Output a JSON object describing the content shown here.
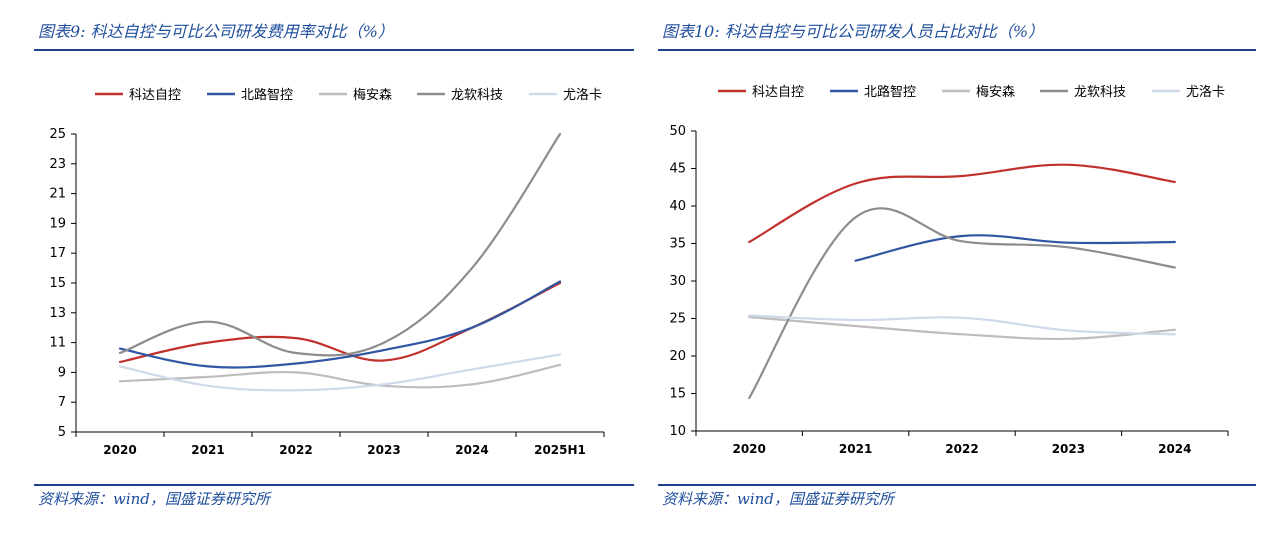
{
  "left": {
    "title": "图表9:  科达自控与可比公司研发费用率对比（%）",
    "source": "资料来源：wind，国盛证券研究所"
  },
  "right": {
    "title": "图表10:  科达自控与可比公司研发人员占比对比（%）",
    "source": "资料来源：wind，国盛证券研究所"
  },
  "chart_data": [
    {
      "type": "line",
      "title": "",
      "xlabel": "",
      "ylabel": "",
      "categories": [
        "2020",
        "2021",
        "2022",
        "2023",
        "2024",
        "2025H1"
      ],
      "ylim": [
        5,
        25
      ],
      "yticks": [
        5,
        7,
        9,
        11,
        13,
        15,
        17,
        19,
        21,
        23,
        25
      ],
      "legend_position": "top",
      "grid": false,
      "series": [
        {
          "name": "科达自控",
          "color": "#c0312b",
          "values": [
            9.7,
            11.0,
            11.3,
            9.8,
            12.0,
            15.0
          ]
        },
        {
          "name": "北路智控",
          "color": "#2f56a3",
          "values": [
            10.6,
            9.4,
            9.6,
            10.5,
            12.0,
            15.1
          ]
        },
        {
          "name": "梅安森",
          "color": "#bdbdbd",
          "values": [
            8.4,
            8.7,
            9.0,
            8.1,
            8.2,
            9.5
          ]
        },
        {
          "name": "龙软科技",
          "color": "#8c8c8c",
          "values": [
            10.3,
            12.4,
            10.3,
            11.0,
            16.0,
            25.0
          ]
        },
        {
          "name": "尤洛卡",
          "color": "#cfd9ec",
          "values": [
            9.4,
            8.1,
            7.8,
            8.2,
            9.2,
            10.2
          ]
        }
      ]
    },
    {
      "type": "line",
      "title": "",
      "xlabel": "",
      "ylabel": "",
      "categories": [
        "2020",
        "2021",
        "2022",
        "2023",
        "2024"
      ],
      "ylim": [
        10,
        50
      ],
      "yticks": [
        10,
        15,
        20,
        25,
        30,
        35,
        40,
        45,
        50
      ],
      "legend_position": "top",
      "grid": false,
      "series": [
        {
          "name": "科达自控",
          "color": "#c0312b",
          "values": [
            35.2,
            43.0,
            44.0,
            45.5,
            43.2
          ]
        },
        {
          "name": "北路智控",
          "color": "#2f56a3",
          "values": [
            null,
            32.7,
            36.0,
            35.1,
            35.2
          ]
        },
        {
          "name": "梅安森",
          "color": "#bdbdbd",
          "values": [
            25.2,
            24.0,
            22.9,
            22.3,
            23.5
          ]
        },
        {
          "name": "龙软科技",
          "color": "#8c8c8c",
          "values": [
            14.4,
            38.5,
            35.3,
            34.5,
            31.8
          ]
        },
        {
          "name": "尤洛卡",
          "color": "#cfd9ec",
          "values": [
            25.4,
            24.8,
            25.1,
            23.4,
            22.9
          ]
        }
      ]
    }
  ]
}
